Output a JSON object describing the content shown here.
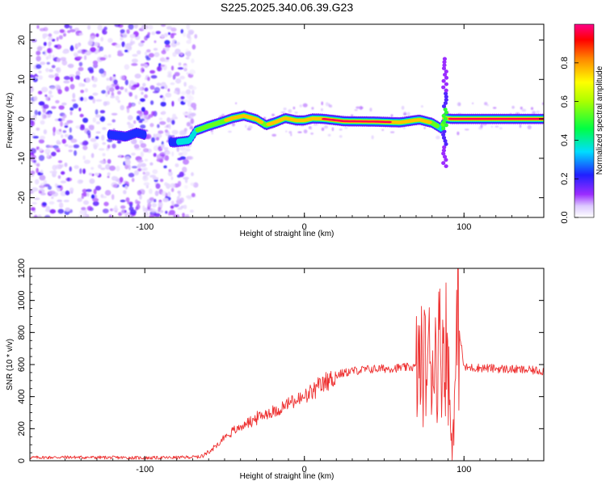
{
  "title": "S225.2025.340.06.39.G23",
  "chart_data": [
    {
      "type": "heatmap",
      "name": "spectrogram",
      "xlabel": "Height of straight line (km)",
      "ylabel": "Frequency (Hz)",
      "xlim": [
        -172,
        150
      ],
      "ylim": [
        -25,
        24
      ],
      "xticks": [
        -100,
        0,
        100
      ],
      "yticks": [
        -20,
        -10,
        0,
        10,
        20
      ],
      "colorbar": {
        "label": "Normalized spectral amplitude",
        "range": [
          0,
          1
        ],
        "ticks": [
          0.0,
          0.2,
          0.4,
          0.6,
          0.8
        ]
      },
      "noise_region_x": [
        -172,
        -68
      ],
      "ridge": {
        "x": [
          -122,
          -112,
          -105,
          -82,
          -72,
          -68,
          -60,
          -52,
          -45,
          -38,
          -30,
          -24,
          -18,
          -12,
          -5,
          0,
          5,
          12,
          25,
          45,
          60,
          72,
          80,
          86,
          88,
          92,
          110,
          130,
          150
        ],
        "y": [
          -4,
          -4.5,
          -3.5,
          -6,
          -5.5,
          -3,
          -1.8,
          -0.8,
          0.2,
          0.8,
          -0.1,
          -1.6,
          -0.8,
          0.2,
          -0.4,
          -0.4,
          0.1,
          0.0,
          -0.6,
          -0.7,
          -0.9,
          -0.2,
          -1.0,
          -2.5,
          0.2,
          0.0,
          0.0,
          0.0,
          0.0
        ],
        "amplitude": [
          0.25,
          0.3,
          0.2,
          0.3,
          0.45,
          0.5,
          0.6,
          0.7,
          0.75,
          0.8,
          0.75,
          0.7,
          0.8,
          0.85,
          0.85,
          0.9,
          0.9,
          0.92,
          0.95,
          0.95,
          0.9,
          0.9,
          0.7,
          0.35,
          0.85,
          0.95,
          0.95,
          0.95,
          0.95
        ]
      },
      "spike": {
        "x": 88,
        "y_range": [
          -12,
          16
        ]
      }
    },
    {
      "type": "line",
      "name": "snr",
      "xlabel": "Height of straight line (km)",
      "ylabel": "SNR (10 * v/v)",
      "xlim": [
        -172,
        150
      ],
      "ylim": [
        0,
        1200
      ],
      "xticks": [
        -100,
        0,
        100
      ],
      "yticks": [
        0,
        200,
        400,
        600,
        800,
        1000,
        1200
      ],
      "series": [
        {
          "name": "SNR",
          "color": "#ee3333",
          "x": [
            -172,
            -150,
            -120,
            -100,
            -80,
            -65,
            -58,
            -50,
            -42,
            -35,
            -25,
            -15,
            -8,
            0,
            8,
            15,
            22,
            30,
            40,
            50,
            60,
            70,
            75,
            80,
            85,
            88,
            90,
            92,
            94,
            96,
            100,
            110,
            120,
            130,
            140,
            150
          ],
          "y": [
            20,
            22,
            20,
            18,
            20,
            25,
            70,
            150,
            200,
            240,
            290,
            320,
            370,
            390,
            450,
            500,
            540,
            560,
            570,
            575,
            580,
            585,
            600,
            640,
            700,
            780,
            620,
            120,
            300,
            900,
            580,
            580,
            575,
            570,
            565,
            560
          ]
        }
      ]
    }
  ]
}
